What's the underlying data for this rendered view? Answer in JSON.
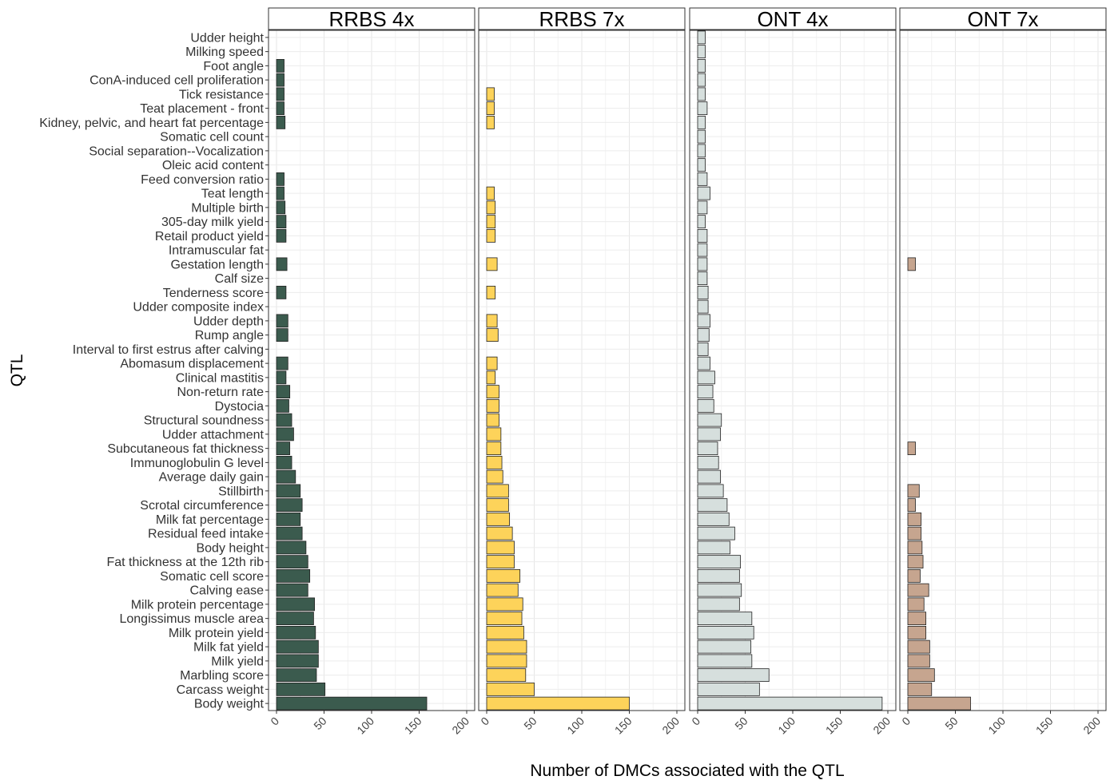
{
  "chart_data": {
    "type": "bar",
    "orientation": "horizontal",
    "xlabel": "Number of DMCs associated with the QTL",
    "ylabel": "QTL",
    "xlim": [
      0,
      200
    ],
    "xticks": [
      0,
      50,
      100,
      150,
      200
    ],
    "grid": true,
    "categories": [
      "Udder height",
      "Milking speed",
      "Foot angle",
      "ConA-induced cell proliferation",
      "Tick resistance",
      "Teat placement - front",
      "Kidney, pelvic, and heart fat percentage",
      "Somatic cell count",
      "Social separation--Vocalization",
      "Oleic acid content",
      "Feed conversion ratio",
      "Teat length",
      "Multiple birth",
      "305-day milk yield",
      "Retail product yield",
      "Intramuscular fat",
      "Gestation length",
      "Calf size",
      "Tenderness score",
      "Udder composite index",
      "Udder depth",
      "Rump angle",
      "Interval to first estrus after calving",
      "Abomasum displacement",
      "Clinical mastitis",
      "Non-return rate",
      "Dystocia",
      "Structural soundness",
      "Udder attachment",
      "Subcutaneous fat thickness",
      "Immunoglobulin G level",
      "Average daily gain",
      "Stillbirth",
      "Scrotal circumference",
      "Milk fat percentage",
      "Residual feed intake",
      "Body height",
      "Fat thickness at the 12th rib",
      "Somatic cell score",
      "Calving ease",
      "Milk protein percentage",
      "Longissimus muscle area",
      "Milk protein yield",
      "Milk fat yield",
      "Milk yield",
      "Marbling score",
      "Carcass weight",
      "Body weight"
    ],
    "series": [
      {
        "name": "RRBS 4x",
        "color": "#3b5b4e",
        "values": [
          0,
          0,
          8,
          8,
          8,
          8,
          9,
          0,
          0,
          0,
          8,
          8,
          9,
          10,
          10,
          0,
          11,
          0,
          10,
          0,
          12,
          12,
          0,
          12,
          10,
          14,
          13,
          16,
          18,
          14,
          16,
          20,
          25,
          27,
          25,
          27,
          31,
          33,
          35,
          33,
          40,
          39,
          41,
          44,
          44,
          42,
          51,
          158
        ]
      },
      {
        "name": "RRBS 7x",
        "color": "#fdd35a",
        "values": [
          0,
          0,
          0,
          0,
          8,
          8,
          8,
          0,
          0,
          0,
          0,
          8,
          9,
          9,
          9,
          0,
          11,
          0,
          9,
          0,
          11,
          12,
          0,
          11,
          9,
          13,
          13,
          13,
          15,
          15,
          16,
          17,
          23,
          23,
          24,
          27,
          29,
          29,
          35,
          33,
          38,
          37,
          39,
          42,
          42,
          41,
          50,
          150
        ]
      },
      {
        "name": "ONT 4x",
        "color": "#d6dfdd",
        "values": [
          8,
          8,
          8,
          8,
          8,
          10,
          8,
          8,
          8,
          8,
          10,
          13,
          10,
          8,
          10,
          10,
          10,
          10,
          11,
          11,
          13,
          12,
          11,
          13,
          18,
          16,
          17,
          25,
          24,
          21,
          22,
          24,
          27,
          31,
          33,
          39,
          34,
          45,
          44,
          46,
          44,
          57,
          59,
          56,
          57,
          75,
          65,
          194
        ]
      },
      {
        "name": "ONT 7x",
        "color": "#c6a58f",
        "values": [
          0,
          0,
          0,
          0,
          0,
          0,
          0,
          0,
          0,
          0,
          0,
          0,
          0,
          0,
          0,
          0,
          8,
          0,
          0,
          0,
          0,
          0,
          0,
          0,
          0,
          0,
          0,
          0,
          0,
          8,
          0,
          0,
          12,
          8,
          14,
          14,
          15,
          16,
          13,
          22,
          17,
          19,
          19,
          23,
          23,
          28,
          25,
          66
        ]
      }
    ]
  }
}
